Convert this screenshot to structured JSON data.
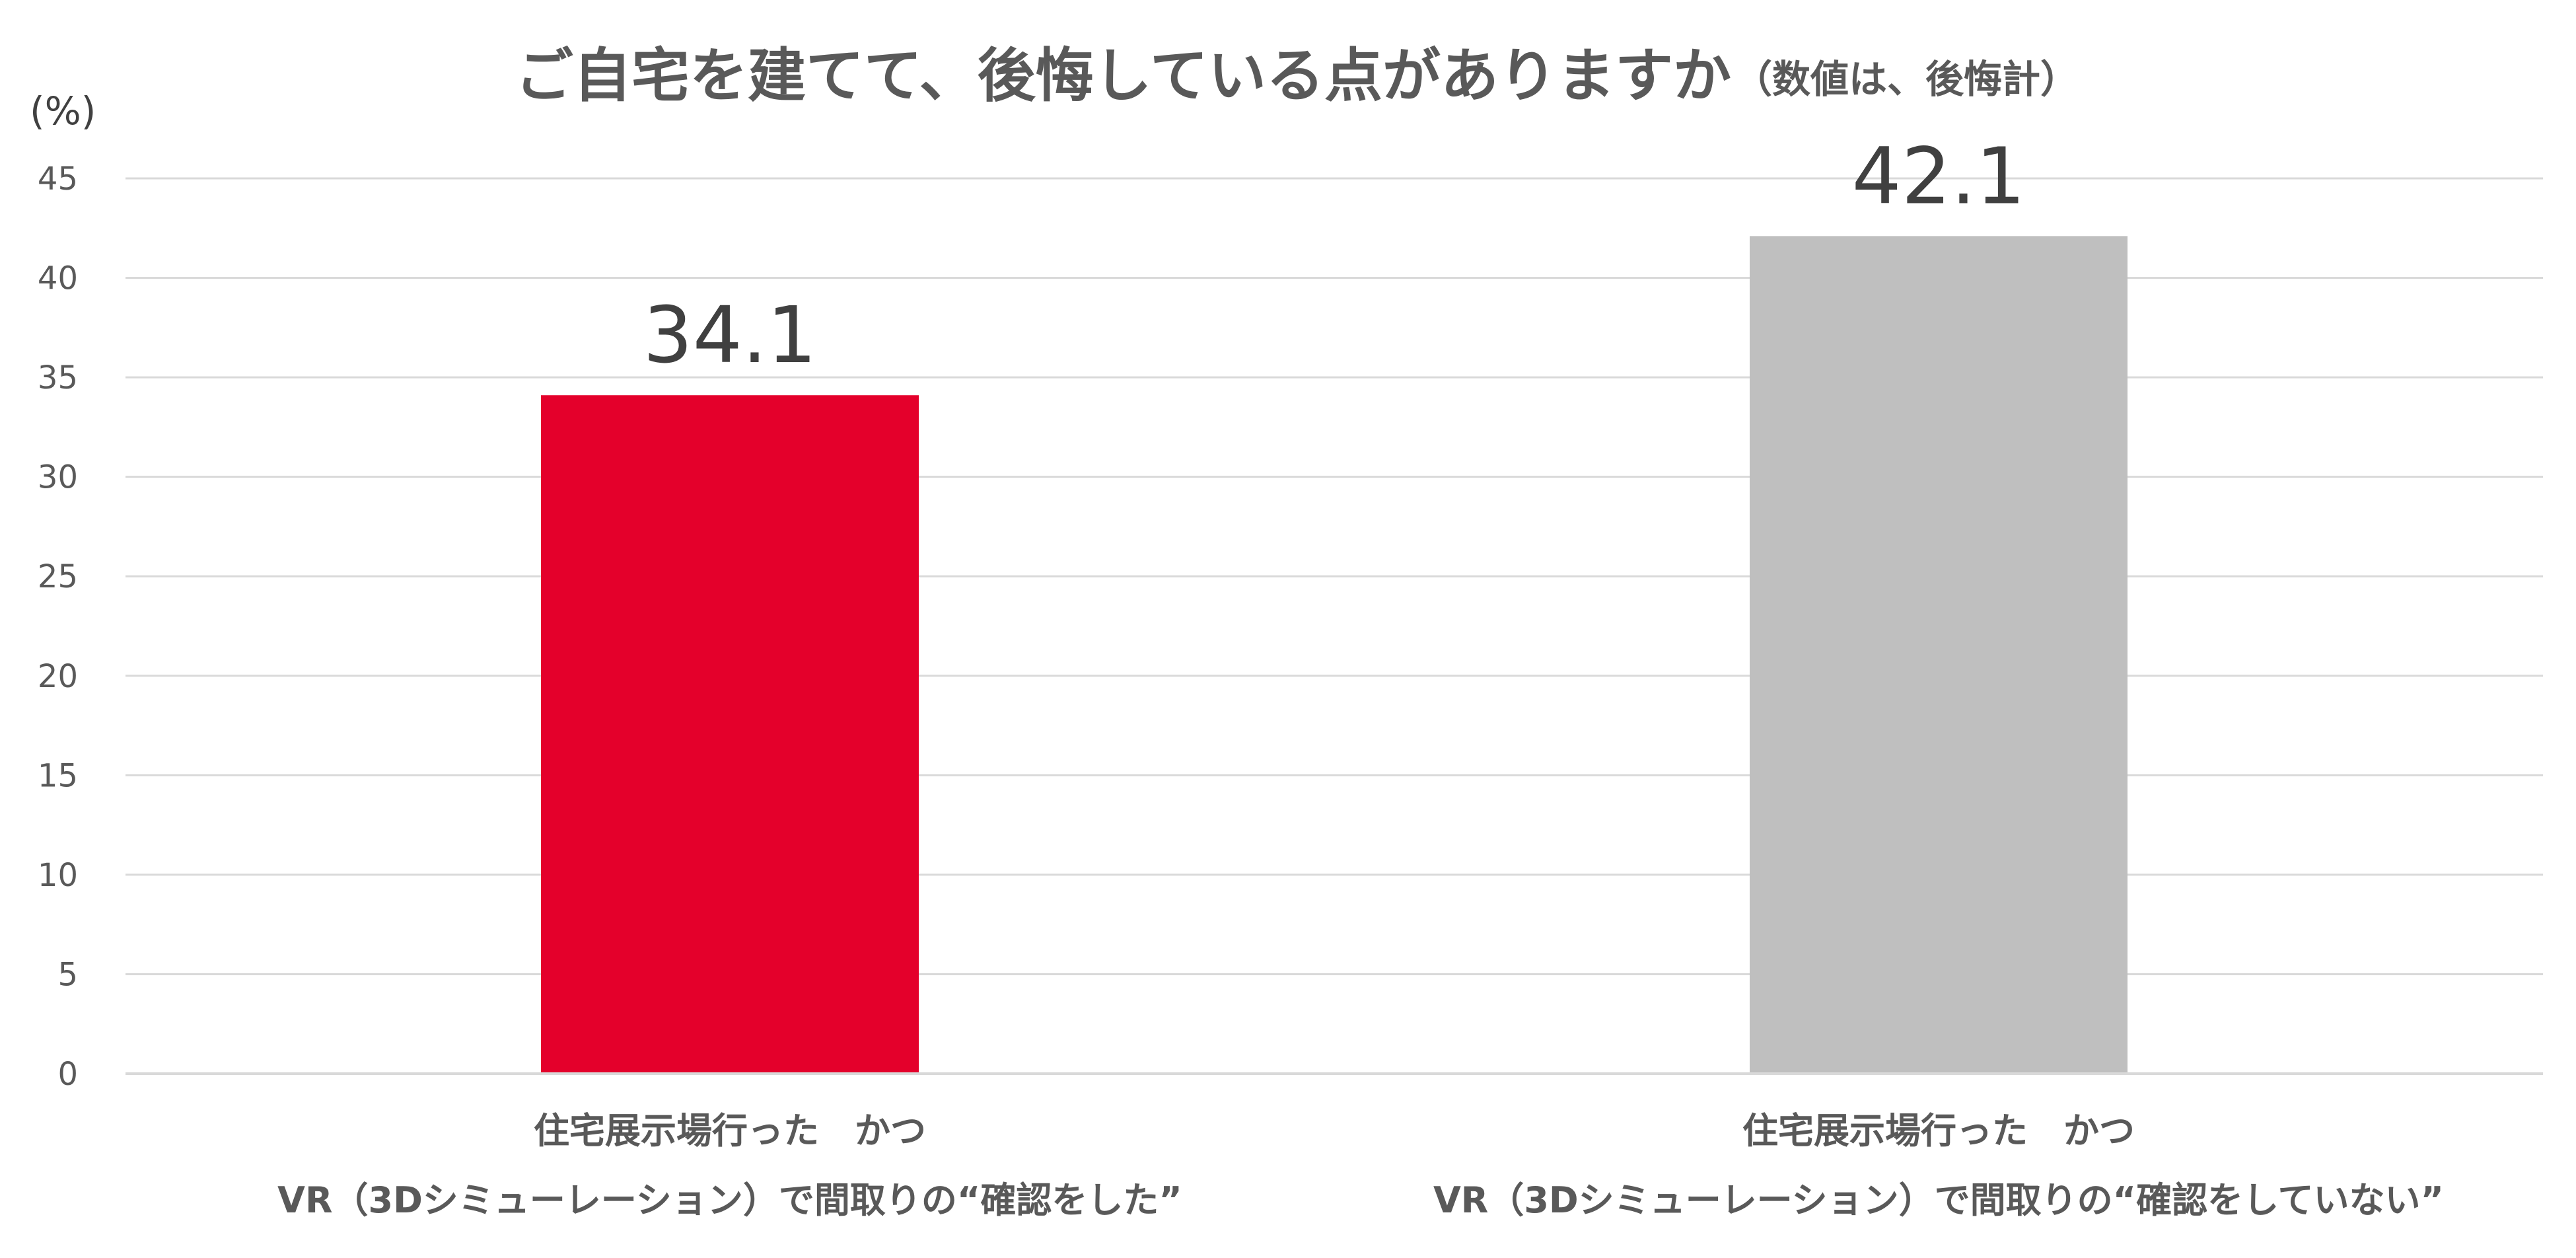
{
  "chart_data": {
    "type": "bar",
    "title": "ご自宅を建てて、後悔している点がありますか",
    "subtitle": "（数値は、後悔計）",
    "unit_label": "(%)",
    "ylim": [
      0,
      45
    ],
    "yticks": [
      "0",
      "5",
      "10",
      "15",
      "20",
      "25",
      "30",
      "35",
      "40",
      "45"
    ],
    "grid": true,
    "categories": [
      [
        "住宅展示場行った　かつ",
        "VR（3Dシミューレーション）で間取りの“確認をした”"
      ],
      [
        "住宅展示場行った　かつ",
        "VR（3Dシミューレーション）で間取りの“確認をしていない”"
      ]
    ],
    "values": [
      34.1,
      42.1
    ],
    "value_labels": [
      "34.1",
      "42.1"
    ],
    "bar_colors": [
      "#e4002b",
      "#bfbfbf"
    ]
  }
}
